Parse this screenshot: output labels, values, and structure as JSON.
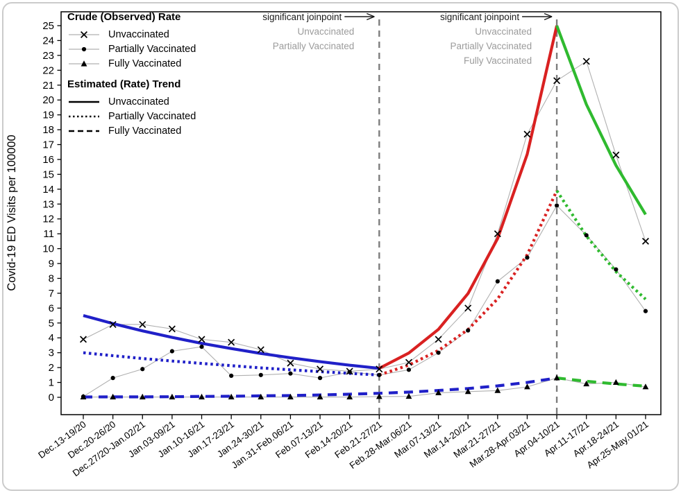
{
  "figure": {
    "ylabel": "Covid-19 ED Visits per 100000"
  },
  "legend": {
    "observed_title": "Crude (Observed) Rate",
    "trend_title": "Estimated (Rate) Trend",
    "observed_items": [
      {
        "label": "Unvaccinated",
        "marker": "x"
      },
      {
        "label": "Partially Vaccinated",
        "marker": "dot"
      },
      {
        "label": "Fully Vaccinated",
        "marker": "triangle"
      }
    ],
    "trend_items": [
      {
        "label": "Unvaccinated",
        "style": "solid"
      },
      {
        "label": "Partially Vaccinated",
        "style": "dotted"
      },
      {
        "label": "Fully Vaccinated",
        "style": "dashed"
      }
    ]
  },
  "annotations": [
    {
      "title": "significant joinpoint",
      "arrow": "right",
      "at_category_index": 10,
      "lines": [
        "Unvaccinated",
        "Partially Vaccinated"
      ]
    },
    {
      "title": "significant joinpoint",
      "arrow": "right",
      "at_category_index": 16,
      "lines": [
        "Unvaccinated",
        "Partially Vaccinated",
        "Fully Vaccinated"
      ]
    }
  ],
  "chart_data": {
    "type": "line",
    "title": "",
    "xlabel": "",
    "ylabel": "Covid-19 ED Visits per 100000",
    "ylim": [
      0,
      25
    ],
    "yticks": [
      0,
      1,
      2,
      3,
      4,
      5,
      6,
      7,
      8,
      9,
      10,
      11,
      12,
      13,
      14,
      15,
      16,
      17,
      18,
      19,
      20,
      21,
      22,
      23,
      24,
      25
    ],
    "grid": false,
    "legend_position": "top-left",
    "categories": [
      "Dec.13-19/20",
      "Dec.20-26/20",
      "Dec.27/20-Jan.02/21",
      "Jan.03-09/21",
      "Jan.10-16/21",
      "Jan.17-23/21",
      "Jan.24-30/21",
      "Jan.31-Feb.06/21",
      "Feb.07-13/21",
      "Feb.14-20/21",
      "Feb.21-27/21",
      "Feb.28-Mar.06/21",
      "Mar.07-13/21",
      "Mar.14-20/21",
      "Mar.21-27/21",
      "Mar.28-Apr.03/21",
      "Apr.04-10/21",
      "Apr.11-17/21",
      "Apr.18-24/21",
      "Apr.25-May.01/21"
    ],
    "observed_series": [
      {
        "name": "Unvaccinated",
        "marker": "x",
        "values": [
          3.9,
          4.9,
          4.9,
          4.6,
          3.9,
          3.7,
          3.2,
          2.3,
          1.9,
          1.75,
          1.9,
          2.35,
          3.9,
          6.0,
          11.0,
          17.7,
          21.3,
          22.6,
          16.3,
          10.5
        ]
      },
      {
        "name": "Partially Vaccinated",
        "marker": "dot",
        "values": [
          0.05,
          1.3,
          1.9,
          3.1,
          3.4,
          1.45,
          1.5,
          1.6,
          1.3,
          1.7,
          1.5,
          1.85,
          3.0,
          4.5,
          7.8,
          9.4,
          12.9,
          10.9,
          8.6,
          5.8
        ]
      },
      {
        "name": "Fully Vaccinated",
        "marker": "triangle",
        "values": [
          0.02,
          0.02,
          0.02,
          0.02,
          0.02,
          0.02,
          0.02,
          0.02,
          0.02,
          0.02,
          0.05,
          0.06,
          0.3,
          0.38,
          0.45,
          0.7,
          1.3,
          0.9,
          1.0,
          0.7
        ]
      }
    ],
    "trend_segments": [
      {
        "series": "Unvaccinated",
        "style": "solid",
        "color": "#2020c8",
        "start_index": 0,
        "values": [
          5.5,
          4.96,
          4.47,
          4.03,
          3.63,
          3.28,
          2.95,
          2.66,
          2.4,
          2.16,
          1.95
        ]
      },
      {
        "series": "Unvaccinated",
        "style": "solid",
        "color": "#d92121",
        "start_index": 10,
        "values": [
          1.95,
          2.98,
          4.57,
          6.98,
          10.68,
          16.35,
          25.0
        ]
      },
      {
        "series": "Unvaccinated",
        "style": "solid",
        "color": "#2fba2f",
        "start_index": 16,
        "values": [
          25.0,
          19.7,
          15.6,
          12.3
        ]
      },
      {
        "series": "Partially Vaccinated",
        "style": "dotted",
        "color": "#2020c8",
        "start_index": 0,
        "values": [
          3.0,
          2.8,
          2.61,
          2.44,
          2.28,
          2.13,
          1.98,
          1.85,
          1.73,
          1.61,
          1.5
        ]
      },
      {
        "series": "Partially Vaccinated",
        "style": "dotted",
        "color": "#d92121",
        "start_index": 10,
        "values": [
          1.5,
          2.17,
          3.15,
          4.56,
          6.62,
          9.59,
          13.9
        ]
      },
      {
        "series": "Partially Vaccinated",
        "style": "dotted",
        "color": "#2fba2f",
        "start_index": 16,
        "values": [
          13.9,
          10.85,
          8.45,
          6.6
        ]
      },
      {
        "series": "Fully Vaccinated",
        "style": "dashed",
        "color": "#2020c8",
        "start_index": 0,
        "values": [
          0.02,
          0.03,
          0.03,
          0.04,
          0.06,
          0.07,
          0.1,
          0.12,
          0.16,
          0.21,
          0.27,
          0.35,
          0.46,
          0.59,
          0.77,
          1.0,
          1.3
        ]
      },
      {
        "series": "Fully Vaccinated",
        "style": "dashed",
        "color": "#2fba2f",
        "start_index": 16,
        "values": [
          1.3,
          1.08,
          0.9,
          0.75
        ]
      }
    ],
    "joinpoint_indices": [
      10,
      16
    ],
    "colors": {
      "segment_before": "#2020c8",
      "segment_between": "#d92121",
      "segment_after": "#2fba2f",
      "observed_line": "#b0b0b0",
      "marker": "#000000",
      "joinpoint_line": "#7d7d7d",
      "annotation_text": "#9b9b9b",
      "axis": "#000000"
    }
  }
}
